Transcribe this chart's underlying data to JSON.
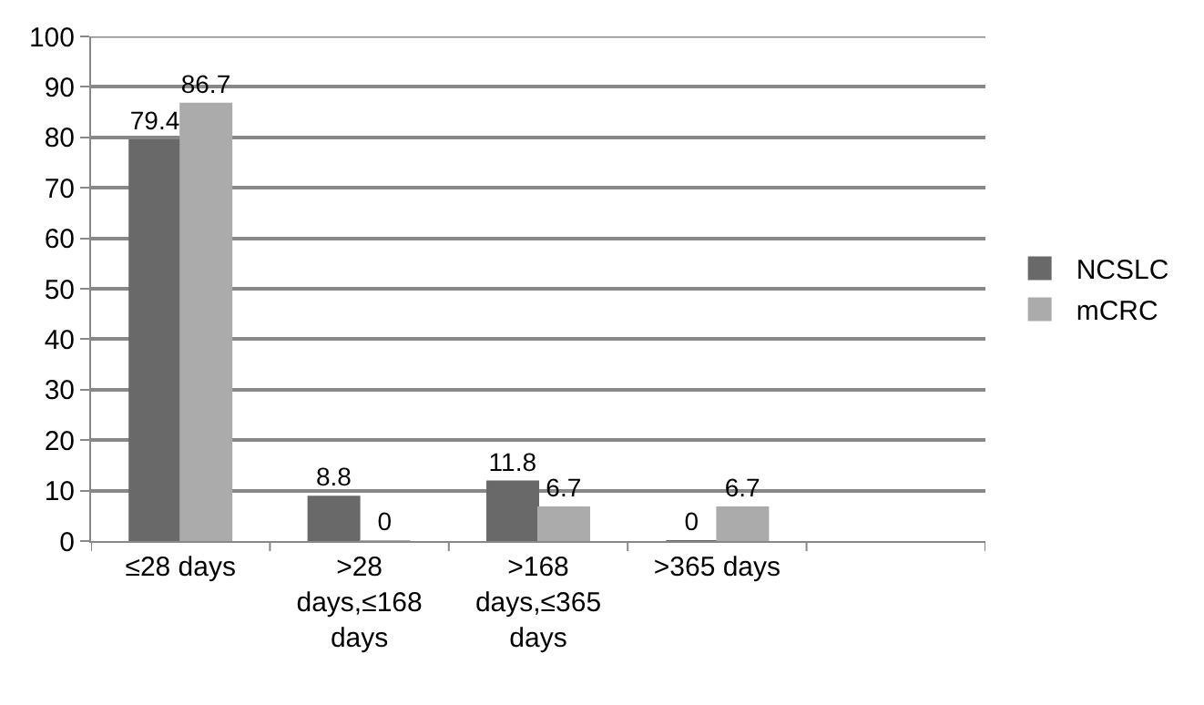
{
  "chart_data": {
    "type": "bar",
    "categories": [
      "≤28 days",
      ">28 days,≤168 days",
      ">168 days,≤365 days",
      ">365 days",
      null
    ],
    "series": [
      {
        "name": "NCSLC",
        "color": "#696969",
        "values": [
          79.4,
          8.8,
          11.8,
          0,
          null
        ]
      },
      {
        "name": "mCRC",
        "color": "#ababab",
        "values": [
          86.7,
          0,
          6.7,
          6.7,
          null
        ]
      }
    ],
    "ylim": [
      0,
      100
    ],
    "yticks": [
      0,
      10,
      20,
      30,
      40,
      50,
      60,
      70,
      80,
      90,
      100
    ],
    "grid": "y",
    "legend": "right",
    "data_labels": true
  }
}
